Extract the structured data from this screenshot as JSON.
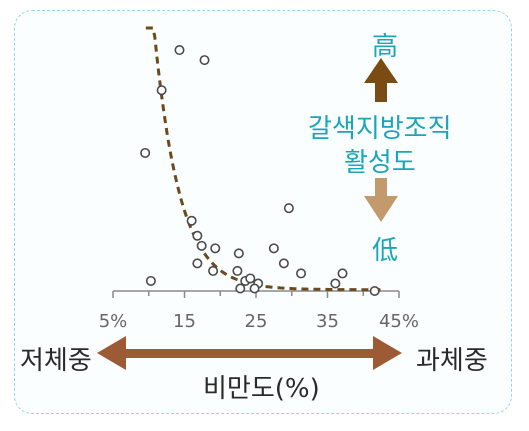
{
  "chart_data": {
    "type": "scatter",
    "xlabel": "비만도(%)",
    "xticks": [
      "5%",
      "15",
      "25",
      "35",
      "45%"
    ],
    "xlim": [
      5,
      45
    ],
    "ylim": [
      0,
      10
    ],
    "points": [
      {
        "x": 14.3,
        "y": 9.6
      },
      {
        "x": 17.8,
        "y": 9.2
      },
      {
        "x": 11.8,
        "y": 8.0
      },
      {
        "x": 9.5,
        "y": 5.5
      },
      {
        "x": 29.6,
        "y": 3.3
      },
      {
        "x": 16.0,
        "y": 2.8
      },
      {
        "x": 16.8,
        "y": 2.2
      },
      {
        "x": 17.4,
        "y": 1.8
      },
      {
        "x": 19.3,
        "y": 1.7
      },
      {
        "x": 22.6,
        "y": 1.5
      },
      {
        "x": 27.5,
        "y": 1.7
      },
      {
        "x": 28.9,
        "y": 1.1
      },
      {
        "x": 16.8,
        "y": 1.1
      },
      {
        "x": 19.0,
        "y": 0.8
      },
      {
        "x": 22.4,
        "y": 0.8
      },
      {
        "x": 23.5,
        "y": 0.4
      },
      {
        "x": 24.2,
        "y": 0.5
      },
      {
        "x": 25.3,
        "y": 0.3
      },
      {
        "x": 22.8,
        "y": 0.1
      },
      {
        "x": 24.8,
        "y": 0.1
      },
      {
        "x": 31.3,
        "y": 0.7
      },
      {
        "x": 37.1,
        "y": 0.7
      },
      {
        "x": 36.1,
        "y": 0.3
      },
      {
        "x": 41.6,
        "y": 0.0
      },
      {
        "x": 10.3,
        "y": 0.4
      }
    ],
    "trend": {
      "style": "dashed",
      "color": "#6b4a1e"
    },
    "annotations": {
      "high": "高",
      "low": "低",
      "y_desc_line1": "갈색지방조직",
      "y_desc_line2": "활성도",
      "left": "저체중",
      "right": "과체중"
    },
    "colors": {
      "accent": "#1aa6b7",
      "arrow_up": "#7a4b12",
      "arrow_down": "#c29a6e",
      "x_arrow": "#9c5b34",
      "trend": "#6b4a1e"
    }
  }
}
